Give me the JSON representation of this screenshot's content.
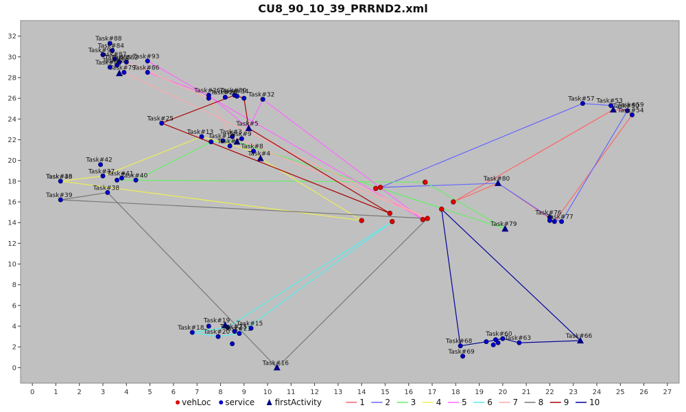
{
  "chart_data": {
    "type": "scatter",
    "title": "CU8_90_10_39_PRRND2.xml",
    "xlim": [
      -0.5,
      27.5
    ],
    "ylim": [
      -1.5,
      33.5
    ],
    "xticks": [
      0,
      1,
      2,
      3,
      4,
      5,
      6,
      7,
      8,
      9,
      10,
      11,
      12,
      13,
      14,
      15,
      16,
      17,
      18,
      19,
      20,
      21,
      22,
      23,
      24,
      25,
      26,
      27
    ],
    "yticks": [
      0,
      2,
      4,
      6,
      8,
      10,
      12,
      14,
      16,
      18,
      20,
      22,
      24,
      26,
      28,
      30,
      32
    ],
    "grid": false,
    "legend_position": "bottom",
    "colors": {
      "plot_bg": "#c0c0c0",
      "vehLoc": "#dd0000",
      "service": "#0000cc",
      "firstActivity": "#000080"
    },
    "legend": [
      {
        "name": "vehLoc",
        "kind": "dot",
        "color": "#dd0000"
      },
      {
        "name": "service",
        "kind": "dot",
        "color": "#0000cc"
      },
      {
        "name": "firstActivity",
        "kind": "tri",
        "color": "#000080"
      },
      {
        "name": "1",
        "kind": "line",
        "color": "#ff6666"
      },
      {
        "name": "2",
        "kind": "line",
        "color": "#6666ff"
      },
      {
        "name": "3",
        "kind": "line",
        "color": "#66ee66"
      },
      {
        "name": "4",
        "kind": "line",
        "color": "#eeee55"
      },
      {
        "name": "5",
        "kind": "line",
        "color": "#ff66ff"
      },
      {
        "name": "6",
        "kind": "line",
        "color": "#55eeee"
      },
      {
        "name": "7",
        "kind": "line",
        "color": "#ffaaaa"
      },
      {
        "name": "8",
        "kind": "line",
        "color": "#777777"
      },
      {
        "name": "9",
        "kind": "line",
        "color": "#aa0000"
      },
      {
        "name": "10",
        "kind": "line",
        "color": "#000099"
      }
    ],
    "vehicles": [
      {
        "x": 14.6,
        "y": 17.3
      },
      {
        "x": 14.8,
        "y": 17.4
      },
      {
        "x": 16.7,
        "y": 17.9
      },
      {
        "x": 17.9,
        "y": 16.0
      },
      {
        "x": 17.4,
        "y": 15.3
      },
      {
        "x": 15.2,
        "y": 14.9
      },
      {
        "x": 16.8,
        "y": 14.4
      },
      {
        "x": 16.6,
        "y": 14.3
      },
      {
        "x": 15.3,
        "y": 14.1
      },
      {
        "x": 14.0,
        "y": 14.2
      }
    ],
    "first_activities": [
      {
        "x": 3.7,
        "y": 28.4
      },
      {
        "x": 9.2,
        "y": 23.1
      },
      {
        "x": 8.7,
        "y": 21.8
      },
      {
        "x": 9.7,
        "y": 20.2
      },
      {
        "x": 24.7,
        "y": 24.9
      },
      {
        "x": 19.8,
        "y": 17.8
      },
      {
        "x": 20.1,
        "y": 13.4
      },
      {
        "x": 23.3,
        "y": 2.6
      },
      {
        "x": 8.2,
        "y": 4.1
      },
      {
        "x": 10.4,
        "y": 0.0
      }
    ],
    "services": [
      {
        "x": 3.3,
        "y": 31.3
      },
      {
        "x": 3.4,
        "y": 30.6
      },
      {
        "x": 3.0,
        "y": 30.2
      },
      {
        "x": 3.5,
        "y": 29.8
      },
      {
        "x": 3.7,
        "y": 29.5
      },
      {
        "x": 4.0,
        "y": 29.5
      },
      {
        "x": 3.6,
        "y": 29.2
      },
      {
        "x": 3.3,
        "y": 29.0
      },
      {
        "x": 3.9,
        "y": 28.5
      },
      {
        "x": 4.9,
        "y": 29.6
      },
      {
        "x": 4.9,
        "y": 28.5
      },
      {
        "x": 7.5,
        "y": 26.3
      },
      {
        "x": 7.5,
        "y": 26.0
      },
      {
        "x": 8.2,
        "y": 26.1
      },
      {
        "x": 8.6,
        "y": 26.3
      },
      {
        "x": 8.7,
        "y": 26.2
      },
      {
        "x": 9.0,
        "y": 26.0
      },
      {
        "x": 9.8,
        "y": 25.9
      },
      {
        "x": 5.5,
        "y": 23.6
      },
      {
        "x": 7.2,
        "y": 22.3
      },
      {
        "x": 7.6,
        "y": 21.8
      },
      {
        "x": 8.1,
        "y": 21.9
      },
      {
        "x": 8.5,
        "y": 22.3
      },
      {
        "x": 8.9,
        "y": 22.1
      },
      {
        "x": 8.4,
        "y": 21.4
      },
      {
        "x": 9.4,
        "y": 20.9
      },
      {
        "x": 2.9,
        "y": 19.6
      },
      {
        "x": 1.2,
        "y": 18.0
      },
      {
        "x": 3.0,
        "y": 18.5
      },
      {
        "x": 3.6,
        "y": 18.1
      },
      {
        "x": 3.8,
        "y": 18.3
      },
      {
        "x": 4.4,
        "y": 18.1
      },
      {
        "x": 1.2,
        "y": 16.2
      },
      {
        "x": 3.2,
        "y": 16.9
      },
      {
        "x": 23.4,
        "y": 25.5
      },
      {
        "x": 24.6,
        "y": 25.3
      },
      {
        "x": 25.3,
        "y": 24.8
      },
      {
        "x": 25.5,
        "y": 24.4
      },
      {
        "x": 22.0,
        "y": 14.5
      },
      {
        "x": 22.0,
        "y": 14.2
      },
      {
        "x": 22.2,
        "y": 14.1
      },
      {
        "x": 22.5,
        "y": 14.1
      },
      {
        "x": 18.2,
        "y": 2.1
      },
      {
        "x": 18.3,
        "y": 1.1
      },
      {
        "x": 19.3,
        "y": 2.5
      },
      {
        "x": 19.6,
        "y": 2.2
      },
      {
        "x": 19.7,
        "y": 2.7
      },
      {
        "x": 19.8,
        "y": 2.4
      },
      {
        "x": 20.0,
        "y": 2.8
      },
      {
        "x": 20.7,
        "y": 2.4
      },
      {
        "x": 6.8,
        "y": 3.4
      },
      {
        "x": 7.5,
        "y": 4.0
      },
      {
        "x": 7.9,
        "y": 3.0
      },
      {
        "x": 8.3,
        "y": 3.9
      },
      {
        "x": 8.6,
        "y": 3.5
      },
      {
        "x": 8.8,
        "y": 3.3
      },
      {
        "x": 8.5,
        "y": 2.3
      },
      {
        "x": 9.3,
        "y": 3.8
      }
    ],
    "routes": [
      {
        "name": "1",
        "color": "#ff6666",
        "points": [
          [
            17.9,
            16.0
          ],
          [
            24.7,
            24.9
          ],
          [
            25.3,
            24.8
          ],
          [
            25.5,
            24.4
          ],
          [
            22.2,
            14.1
          ],
          [
            19.8,
            17.8
          ],
          [
            17.9,
            16.0
          ]
        ]
      },
      {
        "name": "2",
        "color": "#6666ff",
        "points": [
          [
            14.8,
            17.4
          ],
          [
            23.4,
            25.5
          ],
          [
            24.6,
            25.3
          ],
          [
            25.3,
            24.8
          ],
          [
            22.5,
            14.1
          ],
          [
            22.0,
            14.5
          ],
          [
            19.8,
            17.8
          ],
          [
            14.8,
            17.4
          ]
        ]
      },
      {
        "name": "3",
        "color": "#66ee66",
        "points": [
          [
            16.7,
            17.9
          ],
          [
            3.6,
            18.1
          ],
          [
            4.4,
            18.1
          ],
          [
            7.6,
            21.8
          ],
          [
            8.1,
            21.9
          ],
          [
            8.7,
            21.8
          ],
          [
            20.1,
            13.4
          ],
          [
            16.7,
            17.9
          ]
        ]
      },
      {
        "name": "4",
        "color": "#eeee55",
        "points": [
          [
            14.0,
            14.2
          ],
          [
            1.2,
            18.0
          ],
          [
            3.0,
            18.5
          ],
          [
            7.2,
            22.3
          ],
          [
            9.4,
            20.9
          ],
          [
            9.7,
            20.2
          ],
          [
            14.0,
            14.2
          ]
        ]
      },
      {
        "name": "5",
        "color": "#ff66ff",
        "points": [
          [
            16.6,
            14.3
          ],
          [
            4.9,
            29.6
          ],
          [
            4.9,
            28.5
          ],
          [
            7.5,
            26.3
          ],
          [
            9.2,
            23.1
          ],
          [
            9.8,
            25.9
          ],
          [
            16.6,
            14.3
          ]
        ]
      },
      {
        "name": "6",
        "color": "#55eeee",
        "points": [
          [
            15.3,
            14.1
          ],
          [
            8.3,
            3.9
          ],
          [
            6.8,
            3.4
          ],
          [
            7.9,
            3.0
          ],
          [
            8.8,
            3.3
          ],
          [
            15.3,
            14.1
          ]
        ]
      },
      {
        "name": "7",
        "color": "#ffaaaa",
        "points": [
          [
            16.8,
            14.4
          ],
          [
            3.9,
            28.5
          ],
          [
            4.0,
            29.5
          ],
          [
            7.5,
            26.0
          ],
          [
            8.5,
            22.3
          ],
          [
            16.8,
            14.4
          ]
        ]
      },
      {
        "name": "8",
        "color": "#777777",
        "points": [
          [
            16.8,
            14.4
          ],
          [
            1.2,
            16.2
          ],
          [
            3.2,
            16.9
          ],
          [
            10.4,
            0.0
          ],
          [
            16.8,
            14.4
          ]
        ]
      },
      {
        "name": "9",
        "color": "#aa0000",
        "points": [
          [
            15.2,
            14.9
          ],
          [
            5.5,
            23.6
          ],
          [
            8.6,
            26.3
          ],
          [
            9.0,
            26.0
          ],
          [
            9.2,
            23.1
          ],
          [
            15.2,
            14.9
          ]
        ]
      },
      {
        "name": "10",
        "color": "#000099",
        "points": [
          [
            17.4,
            15.3
          ],
          [
            18.2,
            2.1
          ],
          [
            19.3,
            2.5
          ],
          [
            20.0,
            2.8
          ],
          [
            20.7,
            2.4
          ],
          [
            23.3,
            2.6
          ],
          [
            17.4,
            15.3
          ]
        ]
      }
    ],
    "labels": [
      {
        "text": "Task#88",
        "x": 3.3,
        "y": 31.3
      },
      {
        "text": "Task#84",
        "x": 3.4,
        "y": 30.6
      },
      {
        "text": "Task#90",
        "x": 3.0,
        "y": 30.2
      },
      {
        "text": "Task#87",
        "x": 3.5,
        "y": 29.8
      },
      {
        "text": "Task#85",
        "x": 3.7,
        "y": 29.5
      },
      {
        "text": "Task#89",
        "x": 3.6,
        "y": 29.2
      },
      {
        "text": "Task#83",
        "x": 3.3,
        "y": 29.0
      },
      {
        "text": "Task#79",
        "x": 3.9,
        "y": 28.5
      },
      {
        "text": "Task#82",
        "x": 4.0,
        "y": 29.5
      },
      {
        "text": "Task#93",
        "x": 4.9,
        "y": 29.6
      },
      {
        "text": "Task#86",
        "x": 4.9,
        "y": 28.5
      },
      {
        "text": "Task#26",
        "x": 7.5,
        "y": 26.3
      },
      {
        "text": "Task#28",
        "x": 8.2,
        "y": 26.1
      },
      {
        "text": "Task#30",
        "x": 8.6,
        "y": 26.3
      },
      {
        "text": "Task#34",
        "x": 8.7,
        "y": 26.2
      },
      {
        "text": "Task#32",
        "x": 9.8,
        "y": 25.9
      },
      {
        "text": "Task#25",
        "x": 5.5,
        "y": 23.6
      },
      {
        "text": "Task#5",
        "x": 9.2,
        "y": 23.1
      },
      {
        "text": "Task#13",
        "x": 7.2,
        "y": 22.3
      },
      {
        "text": "Task#3",
        "x": 8.5,
        "y": 22.3
      },
      {
        "text": "Task#9",
        "x": 8.9,
        "y": 22.1
      },
      {
        "text": "Task#10",
        "x": 8.1,
        "y": 21.9
      },
      {
        "text": "Task#2",
        "x": 8.4,
        "y": 21.4
      },
      {
        "text": "Task#8",
        "x": 9.4,
        "y": 20.9
      },
      {
        "text": "Task#4",
        "x": 9.7,
        "y": 20.2
      },
      {
        "text": "Task#42",
        "x": 2.9,
        "y": 19.6
      },
      {
        "text": "Task#36",
        "x": 1.2,
        "y": 18.0
      },
      {
        "text": "Task#43",
        "x": 1.2,
        "y": 18.0
      },
      {
        "text": "Task#37",
        "x": 3.0,
        "y": 18.5
      },
      {
        "text": "Task#41",
        "x": 3.8,
        "y": 18.3
      },
      {
        "text": "Task#40",
        "x": 4.4,
        "y": 18.1
      },
      {
        "text": "Task#38",
        "x": 3.2,
        "y": 16.9
      },
      {
        "text": "Task#39",
        "x": 1.2,
        "y": 16.2
      },
      {
        "text": "Task#57",
        "x": 23.4,
        "y": 25.5
      },
      {
        "text": "Task#53",
        "x": 24.6,
        "y": 25.3
      },
      {
        "text": "Task#50",
        "x": 25.3,
        "y": 24.8
      },
      {
        "text": "Task#59",
        "x": 25.5,
        "y": 24.9
      },
      {
        "text": "Task#54",
        "x": 25.5,
        "y": 24.4
      },
      {
        "text": "Task#80",
        "x": 19.8,
        "y": 17.8
      },
      {
        "text": "Task#76",
        "x": 22.0,
        "y": 14.5
      },
      {
        "text": "Task#77",
        "x": 22.5,
        "y": 14.1
      },
      {
        "text": "Task#79",
        "x": 20.1,
        "y": 13.4
      },
      {
        "text": "Task#68",
        "x": 18.2,
        "y": 2.1
      },
      {
        "text": "Task#69",
        "x": 18.3,
        "y": 1.1
      },
      {
        "text": "Task#60",
        "x": 19.9,
        "y": 2.8
      },
      {
        "text": "Task#63",
        "x": 20.7,
        "y": 2.4
      },
      {
        "text": "Task#66",
        "x": 23.3,
        "y": 2.6
      },
      {
        "text": "Task#19",
        "x": 7.9,
        "y": 4.1
      },
      {
        "text": "Task#18",
        "x": 6.8,
        "y": 3.4
      },
      {
        "text": "Task#15",
        "x": 9.3,
        "y": 3.8
      },
      {
        "text": "Task#23",
        "x": 8.6,
        "y": 3.5
      },
      {
        "text": "Task#20",
        "x": 7.9,
        "y": 3.0
      },
      {
        "text": "Task#21",
        "x": 8.8,
        "y": 3.3
      },
      {
        "text": "Task#16",
        "x": 10.4,
        "y": 0.0
      }
    ]
  }
}
